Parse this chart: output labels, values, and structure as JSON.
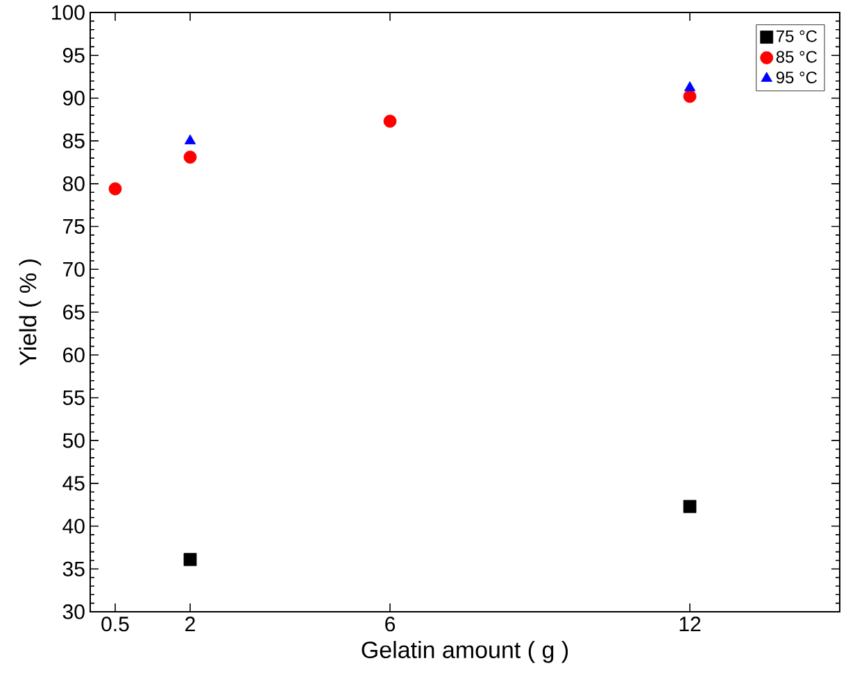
{
  "chart_data": {
    "type": "scatter",
    "xlabel": "Gelatin amount ( g )",
    "ylabel": "Yield ( % )",
    "xlim": [
      0,
      15
    ],
    "ylim": [
      30,
      100
    ],
    "xticks": [
      0.5,
      2,
      6,
      12
    ],
    "yticks": [
      30,
      35,
      40,
      45,
      50,
      55,
      60,
      65,
      70,
      75,
      80,
      85,
      90,
      95,
      100
    ],
    "grid": false,
    "legend": "top right",
    "series": [
      {
        "name": "75 °C",
        "color": "#000000",
        "marker": "square",
        "x": [
          2,
          12
        ],
        "values": [
          36.1,
          42.3
        ]
      },
      {
        "name": "85 °C",
        "color": "#ff0000",
        "marker": "circle",
        "x": [
          0.5,
          2,
          6,
          12
        ],
        "values": [
          79.4,
          83.1,
          87.3,
          90.2
        ]
      },
      {
        "name": "95 °C",
        "color": "#0000ff",
        "marker": "triangle",
        "x": [
          2,
          12
        ],
        "values": [
          85.0,
          91.2
        ]
      }
    ]
  }
}
